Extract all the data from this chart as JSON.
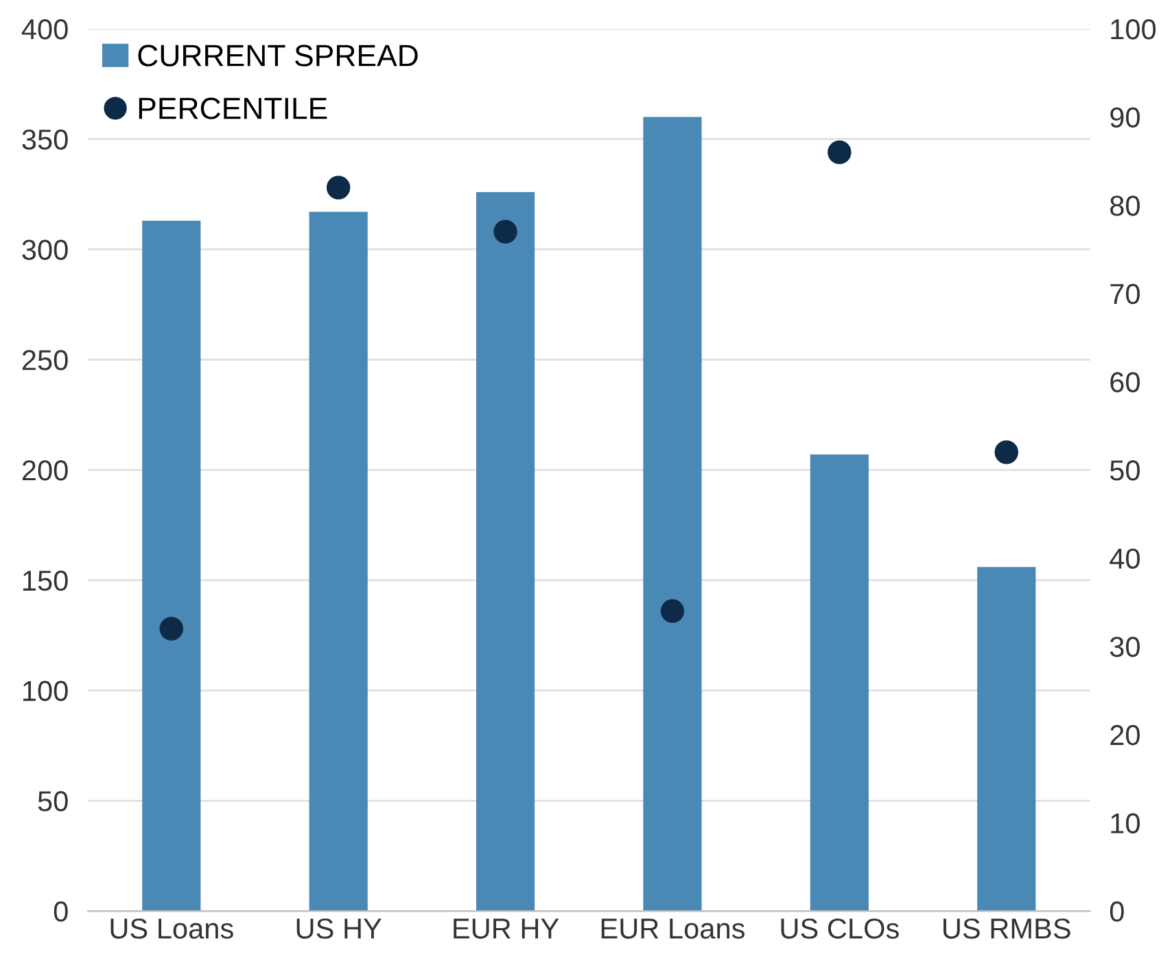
{
  "chart_data": {
    "type": "bar",
    "categories": [
      "US Loans",
      "US HY",
      "EUR HY",
      "EUR Loans",
      "US CLOs",
      "US RMBS"
    ],
    "series": [
      {
        "name": "CURRENT SPREAD",
        "color": "#4a89b5",
        "values": [
          313,
          317,
          326,
          360,
          207,
          156
        ]
      },
      {
        "name": "PERCENTILE",
        "type": "scatter",
        "axis": "y2",
        "color": "#0d2b48",
        "values": [
          32,
          82,
          77,
          34,
          86,
          52
        ]
      }
    ],
    "ylim": [
      0,
      400
    ],
    "yticks": [
      0,
      50,
      100,
      150,
      200,
      250,
      300,
      350,
      400
    ],
    "y2lim": [
      0,
      100
    ],
    "y2ticks": [
      0,
      10,
      20,
      30,
      40,
      50,
      60,
      70,
      80,
      90,
      100
    ],
    "grid": "y",
    "legend": "top left",
    "marker": "circle"
  }
}
